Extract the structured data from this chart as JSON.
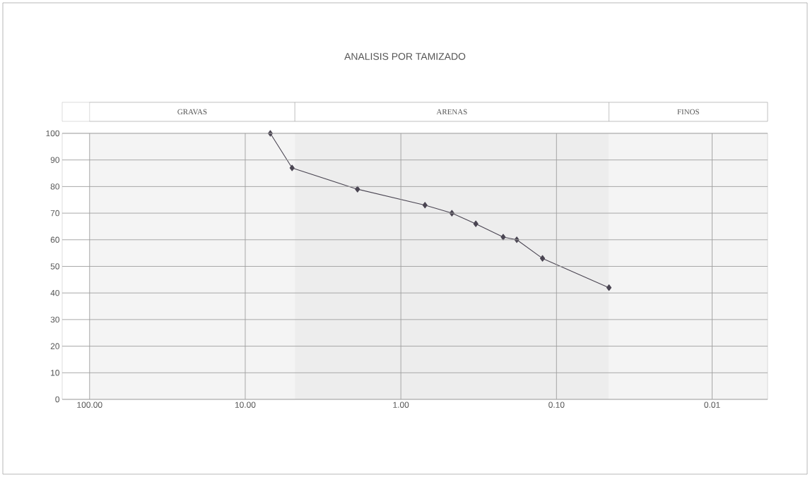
{
  "chart_data": {
    "type": "line",
    "title": "ANALISIS POR TAMIZADO",
    "x": [
      6.9,
      5.0,
      1.9,
      0.7,
      0.47,
      0.33,
      0.22,
      0.18,
      0.123,
      0.046
    ],
    "series": [
      {
        "color": "#4a4552",
        "values": [
          100,
          87,
          79,
          73,
          70,
          66,
          61,
          60,
          53,
          42
        ]
      }
    ],
    "xlim": [
      150,
      0.0044
    ],
    "log": "x",
    "xticks": [
      {
        "value": 100,
        "label": "100.00"
      },
      {
        "value": 10,
        "label": "10.00"
      },
      {
        "value": 1,
        "label": "1.00"
      },
      {
        "value": 0.1,
        "label": "0.10"
      },
      {
        "value": 0.01,
        "label": "0.01"
      }
    ],
    "ylim": [
      0,
      100
    ],
    "yticks": [
      0,
      10,
      20,
      30,
      40,
      50,
      60,
      70,
      80,
      90,
      100
    ],
    "bands": [
      {
        "axis": "x",
        "from": 100,
        "to": 4.8,
        "label": "GRAVAS"
      },
      {
        "axis": "x",
        "from": 4.8,
        "to": 0.046,
        "label": "ARENAS"
      },
      {
        "axis": "x",
        "from": 0.046,
        "to": 0.0044,
        "label": "FINOS"
      }
    ],
    "grid": true,
    "marker": "diamond",
    "line_style": "solid"
  }
}
